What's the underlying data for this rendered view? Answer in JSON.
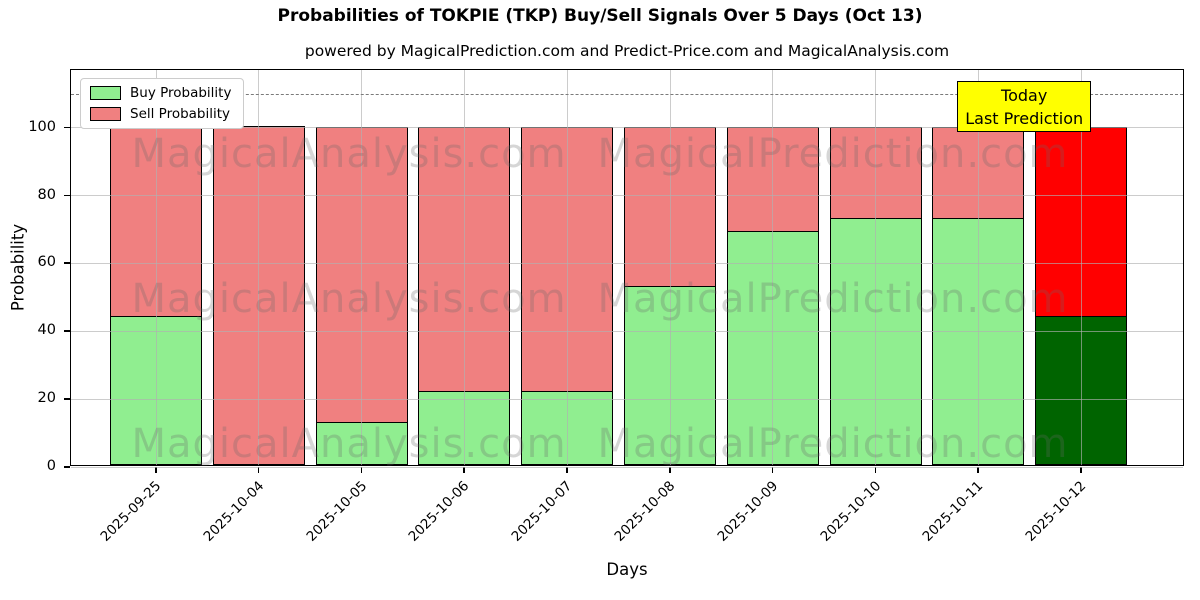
{
  "title": "Probabilities of TOKPIE (TKP) Buy/Sell Signals Over 5 Days (Oct 13)",
  "subtitle": "powered by MagicalPrediction.com and Predict-Price.com and MagicalAnalysis.com",
  "legend": {
    "buy_label": "Buy Probability",
    "sell_label": "Sell Probability"
  },
  "annotation": {
    "line1": "Today",
    "line2": "Last Prediction"
  },
  "axes": {
    "xlabel": "Days",
    "ylabel": "Probability",
    "yticks": [
      0,
      20,
      40,
      60,
      80,
      100
    ]
  },
  "watermarks": {
    "left_text": "MagicalAnalysis.com",
    "right_text": "MagicalPrediction.com"
  },
  "colors": {
    "buy": "#90ee90",
    "sell": "#f08080",
    "buy_today": "#006400",
    "sell_today": "#ff0000",
    "annotation_bg": "#ffff00",
    "grid": "#b0b0b0",
    "dashed_line": "#7a7a7a"
  },
  "chart_data": {
    "type": "bar",
    "stacked": true,
    "title": "Probabilities of TOKPIE (TKP) Buy/Sell Signals Over 5 Days (Oct 13)",
    "xlabel": "Days",
    "ylabel": "Probability",
    "categories": [
      "2025-09-25",
      "2025-10-04",
      "2025-10-05",
      "2025-10-06",
      "2025-10-07",
      "2025-10-08",
      "2025-10-09",
      "2025-10-10",
      "2025-10-11",
      "2025-10-12"
    ],
    "series": [
      {
        "name": "Buy Probability",
        "values": [
          44,
          0,
          13,
          22,
          22,
          53,
          69,
          73,
          73,
          44
        ]
      },
      {
        "name": "Sell Probability",
        "values": [
          56,
          100,
          87,
          78,
          78,
          47,
          31,
          27,
          27,
          56
        ]
      }
    ],
    "ylim": [
      0,
      117
    ],
    "dashed_line_y": 110,
    "today_index": 9,
    "grid": true,
    "legend_position": "upper-left"
  }
}
